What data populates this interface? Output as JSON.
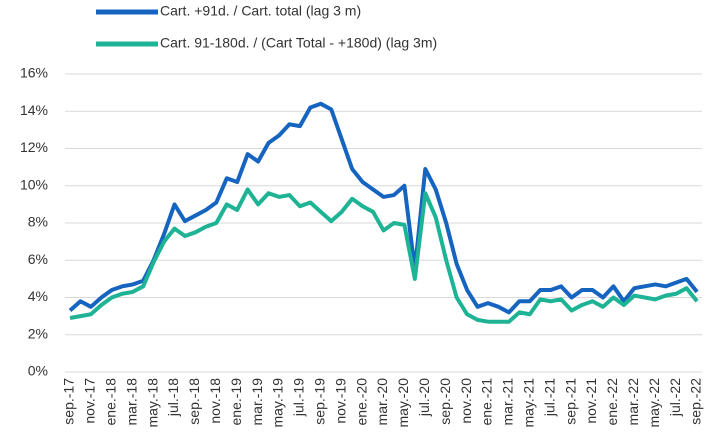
{
  "chart_data": {
    "type": "line",
    "categories": [
      "sep.-17",
      null,
      "nov.-17",
      null,
      "ene.-18",
      null,
      "mar.-18",
      null,
      "may.-18",
      null,
      "jul.-18",
      null,
      "sep.-18",
      null,
      "nov.-18",
      null,
      "ene.-19",
      null,
      "mar.-19",
      null,
      "may.-19",
      null,
      "jul.-19",
      null,
      "sep.-19",
      null,
      "nov.-19",
      null,
      "ene.-20",
      null,
      "mar.-20",
      null,
      "may.-20",
      null,
      "jul.-20",
      null,
      "sep.-20",
      null,
      "nov.-20",
      null,
      "ene.-21",
      null,
      "mar.-21",
      null,
      "may.-21",
      null,
      "jul.-21",
      null,
      "sep.-21",
      null,
      "nov.-21",
      null,
      "ene.-22",
      null,
      "mar.-22",
      null,
      "may.-22",
      null,
      "jul.-22",
      null,
      "sep.-22"
    ],
    "series": [
      {
        "name": "Cart. +91d. / Cart. total (lag 3 m)",
        "color": "#1565c0",
        "values": [
          3.3,
          3.8,
          3.5,
          4.0,
          4.4,
          4.6,
          4.7,
          4.9,
          6.0,
          7.4,
          9.0,
          8.1,
          8.4,
          8.7,
          9.1,
          10.4,
          10.2,
          11.7,
          11.3,
          12.3,
          12.7,
          13.3,
          13.2,
          14.2,
          14.4,
          14.1,
          12.5,
          10.9,
          10.2,
          9.8,
          9.4,
          9.5,
          10.0,
          5.5,
          10.9,
          9.8,
          8.0,
          5.8,
          4.4,
          3.5,
          3.7,
          3.5,
          3.2,
          3.8,
          3.8,
          4.4,
          4.4,
          4.6,
          4.0,
          4.4,
          4.4,
          4.0,
          4.6,
          3.8,
          4.5,
          4.6,
          4.7,
          4.6,
          4.8,
          5.0,
          4.3
        ]
      },
      {
        "name": "Cart. 91-180d. / (Cart Total - +180d) (lag 3m)",
        "color": "#1db394",
        "values": [
          2.9,
          3.0,
          3.1,
          3.6,
          4.0,
          4.2,
          4.3,
          4.6,
          5.9,
          7.0,
          7.7,
          7.3,
          7.5,
          7.8,
          8.0,
          9.0,
          8.7,
          9.8,
          9.0,
          9.6,
          9.4,
          9.5,
          8.9,
          9.1,
          8.6,
          8.1,
          8.6,
          9.3,
          8.9,
          8.6,
          7.6,
          8.0,
          7.9,
          5.0,
          9.6,
          8.3,
          6.0,
          4.0,
          3.1,
          2.8,
          2.7,
          2.7,
          2.7,
          3.2,
          3.1,
          3.9,
          3.8,
          3.9,
          3.3,
          3.6,
          3.8,
          3.5,
          4.0,
          3.6,
          4.1,
          4.0,
          3.9,
          4.1,
          4.2,
          4.5,
          3.8
        ]
      }
    ],
    "ylim": [
      0,
      16
    ],
    "yticks": [
      {
        "value": 0,
        "label": "0%"
      },
      {
        "value": 2,
        "label": "2%"
      },
      {
        "value": 4,
        "label": "4%"
      },
      {
        "value": 6,
        "label": "6%"
      },
      {
        "value": 8,
        "label": "8%"
      },
      {
        "value": 10,
        "label": "10%"
      },
      {
        "value": 12,
        "label": "12%"
      },
      {
        "value": 14,
        "label": "14%"
      },
      {
        "value": 16,
        "label": "16%"
      }
    ],
    "grid": true,
    "legend": "top"
  }
}
